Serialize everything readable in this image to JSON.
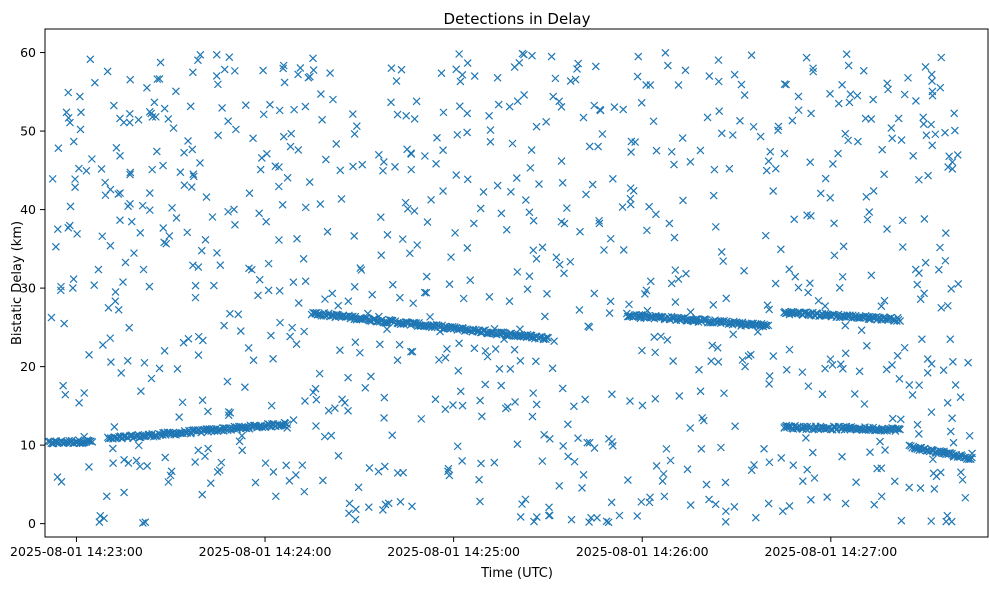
{
  "chart_data": {
    "type": "scatter",
    "title": "Detections in Delay",
    "xlabel": "Time (UTC)",
    "ylabel": "Bistatic Delay (km)",
    "x_tick_labels": [
      "2025-08-01 14:23:00",
      "2025-08-01 14:24:00",
      "2025-08-01 14:25:00",
      "2025-08-01 14:26:00",
      "2025-08-01 14:27:00"
    ],
    "y_tick_labels": [
      "0",
      "10",
      "20",
      "30",
      "40",
      "50",
      "60"
    ],
    "xlim": [
      "2025-08-01 14:22:50",
      "2025-08-01 14:27:50"
    ],
    "ylim": [
      -1.7,
      63
    ],
    "marker": "x",
    "color": "#1f77b4",
    "grid": false,
    "tracks": [
      {
        "x_start": "2025-08-01 14:22:50",
        "x_end": "2025-08-01 14:23:05",
        "y_start": 10.3,
        "y_end": 10.5
      },
      {
        "x_start": "2025-08-01 14:23:10",
        "x_end": "2025-08-01 14:24:07",
        "y_start": 10.8,
        "y_end": 12.7
      },
      {
        "x_start": "2025-08-01 14:24:15",
        "x_end": "2025-08-01 14:25:25",
        "y_start": 26.8,
        "y_end": 23.8
      },
      {
        "x_start": "2025-08-01 14:25:25",
        "x_end": "2025-08-01 14:25:30",
        "y_start": 23.8,
        "y_end": 23.6
      },
      {
        "x_start": "2025-08-01 14:25:55",
        "x_end": "2025-08-01 14:26:40",
        "y_start": 26.6,
        "y_end": 25.2
      },
      {
        "x_start": "2025-08-01 14:26:45",
        "x_end": "2025-08-01 14:27:22",
        "y_start": 26.9,
        "y_end": 26.0
      },
      {
        "x_start": "2025-08-01 14:26:45",
        "x_end": "2025-08-01 14:27:22",
        "y_start": 12.3,
        "y_end": 12.0
      },
      {
        "x_start": "2025-08-01 14:27:25",
        "x_end": "2025-08-01 14:27:45",
        "y_start": 9.8,
        "y_end": 8.3
      }
    ],
    "noise": {
      "x_range": [
        "2025-08-01 14:22:50",
        "2025-08-01 14:27:45"
      ],
      "y_range": [
        0,
        60
      ]
    }
  }
}
